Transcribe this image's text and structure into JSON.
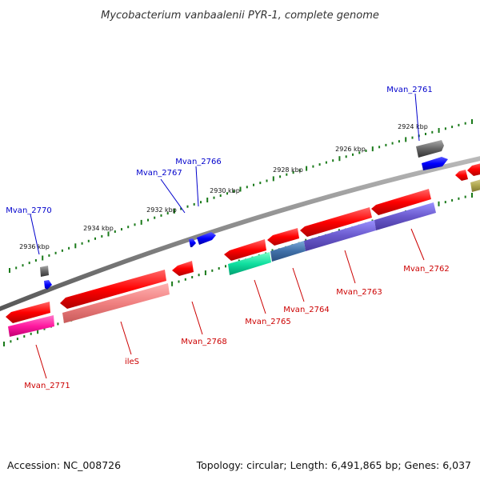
{
  "title": "Mycobacterium vanbaalenii PYR-1, complete genome",
  "footer": {
    "accession_label": "Accession: NC_008726",
    "stats_label": "Topology: circular; Length: 6,491,865 bp; Genes: 6,037"
  },
  "colors": {
    "backbone": "#888888",
    "tick": "#1a7a1a",
    "forward_label": "#0000cc",
    "reverse_label": "#cc0000",
    "forward_gene": "#0000ff",
    "pseudo_gene": "#666666",
    "reverse_gene": "#ff0000"
  },
  "scale_labels": [
    "2924 kbp",
    "2926 kbp",
    "2928 kbp",
    "2930 kbp",
    "2932 kbp",
    "2934 kbp",
    "2936 kbp"
  ],
  "genes": [
    {
      "name": "Mvan_2761",
      "strand": "+"
    },
    {
      "name": "Mvan_2762",
      "strand": "-"
    },
    {
      "name": "Mvan_2763",
      "strand": "-"
    },
    {
      "name": "Mvan_2764",
      "strand": "-"
    },
    {
      "name": "Mvan_2765",
      "strand": "-"
    },
    {
      "name": "Mvan_2766",
      "strand": "+"
    },
    {
      "name": "Mvan_2767",
      "strand": "+"
    },
    {
      "name": "Mvan_2768",
      "strand": "-"
    },
    {
      "name": "ileS",
      "strand": "-"
    },
    {
      "name": "Mvan_2770",
      "strand": "+"
    },
    {
      "name": "Mvan_2771",
      "strand": "-"
    }
  ]
}
